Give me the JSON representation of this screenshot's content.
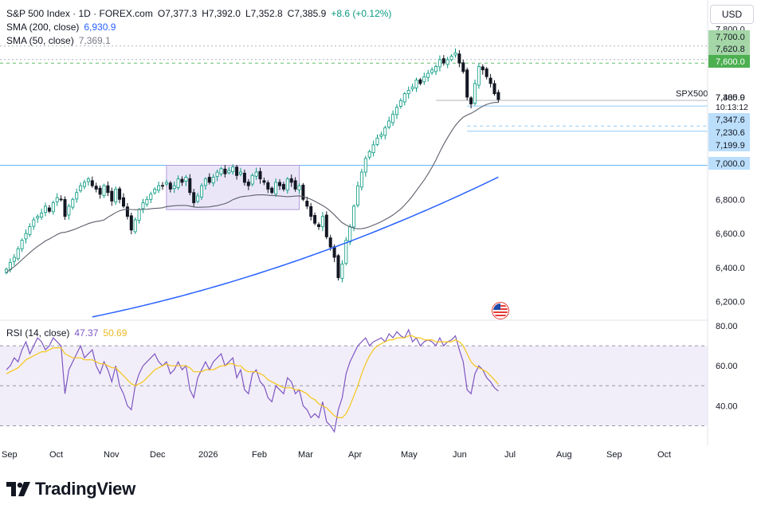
{
  "header": {
    "symbol": "S&P 500 Index · 1D · FOREX.com",
    "open": "O7,377.3",
    "high": "H7,392.0",
    "low": "L7,352.8",
    "close": "C7,385.9",
    "change": "+8.6 (+0.12%)"
  },
  "indicators": {
    "sma200_label": "SMA (200, close)",
    "sma200_value": "6,930.9",
    "sma50_label": "SMA (50, close)",
    "sma50_value": "7,369.1",
    "rsi_label": "RSI (14, close)",
    "rsi_value": "47.37",
    "rsi_ma_value": "50.69"
  },
  "currency_button": "USD",
  "brand": "TradingView",
  "colors": {
    "up": "#089981",
    "down": "#131722",
    "sma200": "#2962ff",
    "sma50": "#5d606b",
    "rsi": "#7e57c2",
    "rsi_ma": "#f5c518",
    "range_box": "#d9d2f3",
    "green_label": "#66bb6a",
    "blue_label": "#bbdefb"
  },
  "chart_data": {
    "type": "candlestick",
    "price_axis": {
      "ticks": [
        "7,800.0",
        "7,600.0",
        "7,400.0",
        "7,200.0",
        "7,000.0",
        "6,800.0",
        "6,600.0",
        "6,400.0",
        "6,200.0"
      ],
      "ylim": [
        6100,
        7830
      ]
    },
    "time_axis": {
      "labels": [
        "Sep",
        "Oct",
        "Nov",
        "Dec",
        "2026",
        "Feb",
        "Mar",
        "Apr",
        "May",
        "Jun",
        "Jul",
        "Aug",
        "Sep",
        "Oct"
      ]
    },
    "price_labels": [
      {
        "text": "7,700.0",
        "price": 7700,
        "style": "green"
      },
      {
        "text": "7,620.8",
        "price": 7620.8,
        "style": "green"
      },
      {
        "text": "7,600.0",
        "price": 7600,
        "style": "green-dark"
      },
      {
        "text": "7,385.9",
        "price": 7385.9,
        "style": "plain"
      },
      {
        "text": "10:13:12",
        "price": 7345,
        "style": "plain-small"
      },
      {
        "text": "7,347.6",
        "price": 7347.6,
        "style": "blue"
      },
      {
        "text": "7,230.6",
        "price": 7230.6,
        "style": "blue"
      },
      {
        "text": "7,199.9",
        "price": 7199.9,
        "style": "blue"
      },
      {
        "text": "7,000.0",
        "price": 7000,
        "style": "blue"
      }
    ],
    "horizontal_levels": [
      {
        "price": 7700,
        "style": "dotted-grey"
      },
      {
        "price": 7620.8,
        "style": "dotted-grey"
      },
      {
        "price": 7600,
        "style": "dashed-green"
      },
      {
        "price": 7347.6,
        "style": "solid-lightblue"
      },
      {
        "price": 7230.6,
        "style": "dashed-lightblue"
      },
      {
        "price": 7199.9,
        "style": "solid-lightblue"
      },
      {
        "price": 7000,
        "style": "solid-blue"
      }
    ],
    "symbol_tag": "SPX500",
    "range_box": {
      "from_bar": 41,
      "to_bar": 75,
      "top": 7000,
      "bottom": 6740
    },
    "closes": [
      6390,
      6430,
      6460,
      6510,
      6560,
      6600,
      6640,
      6680,
      6700,
      6720,
      6760,
      6730,
      6780,
      6810,
      6800,
      6700,
      6760,
      6800,
      6840,
      6880,
      6900,
      6920,
      6880,
      6860,
      6830,
      6880,
      6840,
      6790,
      6860,
      6800,
      6760,
      6700,
      6620,
      6680,
      6740,
      6780,
      6800,
      6830,
      6860,
      6880,
      6880,
      6900,
      6860,
      6880,
      6920,
      6900,
      6930,
      6840,
      6780,
      6820,
      6880,
      6920,
      6900,
      6930,
      6960,
      6980,
      6950,
      6970,
      6990,
      6940,
      6960,
      6900,
      6880,
      6940,
      6960,
      6920,
      6900,
      6860,
      6840,
      6900,
      6880,
      6860,
      6920,
      6900,
      6860,
      6880,
      6800,
      6760,
      6700,
      6660,
      6640,
      6700,
      6580,
      6520,
      6460,
      6340,
      6420,
      6560,
      6640,
      6760,
      6880,
      6960,
      7040,
      7080,
      7120,
      7160,
      7180,
      7220,
      7260,
      7300,
      7340,
      7380,
      7420,
      7440,
      7460,
      7500,
      7480,
      7520,
      7540,
      7560,
      7580,
      7620,
      7600,
      7620,
      7640,
      7660,
      7600,
      7550,
      7400,
      7360,
      7480,
      7580,
      7560,
      7520,
      7480,
      7420,
      7385.9
    ],
    "sma50": {
      "start_price": 6370,
      "end_price": 7369.1
    },
    "sma200": {
      "start_price": 6110,
      "end_price": 6930.9
    },
    "rsi": {
      "ticks": [
        "80.00",
        "60.00",
        "40.00"
      ],
      "bands": [
        70,
        50,
        30
      ],
      "ylim": [
        25,
        82
      ],
      "values": [
        58,
        60,
        64,
        62,
        68,
        72,
        66,
        70,
        74,
        72,
        68,
        70,
        74,
        72,
        70,
        46,
        58,
        62,
        66,
        70,
        64,
        66,
        68,
        60,
        56,
        62,
        58,
        52,
        60,
        50,
        46,
        40,
        38,
        50,
        56,
        60,
        62,
        64,
        66,
        62,
        60,
        62,
        56,
        58,
        62,
        58,
        60,
        48,
        44,
        54,
        58,
        62,
        58,
        62,
        64,
        66,
        60,
        62,
        64,
        54,
        58,
        48,
        46,
        56,
        58,
        52,
        50,
        44,
        42,
        50,
        48,
        46,
        54,
        52,
        46,
        48,
        40,
        38,
        34,
        36,
        34,
        42,
        32,
        30,
        27,
        38,
        44,
        56,
        62,
        66,
        70,
        72,
        74,
        70,
        72,
        73,
        74,
        72,
        76,
        74,
        77,
        75,
        74,
        78,
        72,
        74,
        70,
        72,
        73,
        72,
        70,
        74,
        70,
        72,
        73,
        75,
        68,
        62,
        48,
        46,
        56,
        60,
        58,
        54,
        52,
        49,
        47.37
      ],
      "ma_values_note_free": [
        56,
        57,
        58,
        59,
        61,
        63,
        64,
        65,
        66,
        67,
        67,
        68,
        69,
        69,
        69,
        66,
        65,
        64,
        64,
        64,
        63,
        63,
        63,
        62,
        61,
        61,
        60,
        59,
        59,
        57,
        55,
        53,
        51,
        50,
        51,
        52,
        54,
        56,
        58,
        59,
        60,
        61,
        60,
        60,
        60,
        60,
        60,
        59,
        57,
        57,
        57,
        58,
        58,
        58,
        59,
        60,
        60,
        61,
        61,
        60,
        60,
        58,
        57,
        57,
        57,
        56,
        55,
        53,
        52,
        51,
        50,
        49,
        49,
        49,
        48,
        48,
        47,
        46,
        44,
        43,
        41,
        40,
        39,
        37,
        35,
        34,
        34,
        36,
        40,
        45,
        50,
        56,
        61,
        65,
        68,
        70,
        71,
        72,
        73,
        73,
        74,
        74,
        74,
        75,
        75,
        74,
        74,
        73,
        73,
        73,
        72,
        72,
        72,
        72,
        72,
        73,
        72,
        70,
        66,
        62,
        60,
        59,
        58,
        57,
        55,
        53,
        50.69
      ]
    }
  }
}
